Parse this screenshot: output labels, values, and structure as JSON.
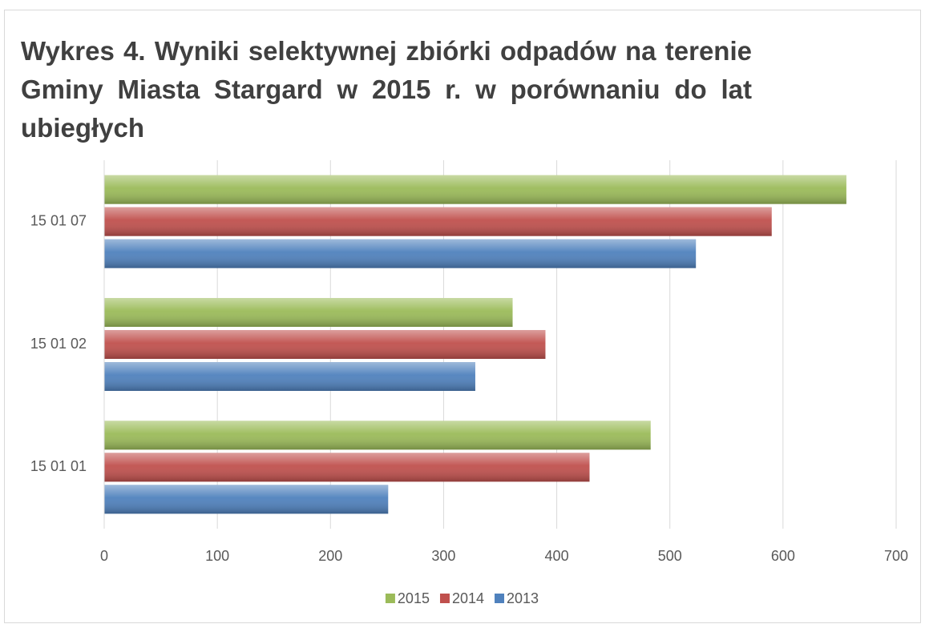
{
  "chart_data": {
    "type": "bar",
    "orientation": "horizontal",
    "title": "Wykres 4. Wyniki selektywnej zbiórki odpadów na terenie Gminy Miasta Stargard w 2015 r. w porównaniu do lat ubiegłych",
    "categories": [
      "15 01 01",
      "15 01 02",
      "15 01 07"
    ],
    "series": [
      {
        "name": "2015",
        "color": "#9bbb59",
        "values": [
          483,
          361,
          656
        ]
      },
      {
        "name": "2014",
        "color": "#c0504d",
        "values": [
          429,
          390,
          590
        ]
      },
      {
        "name": "2013",
        "color": "#4f81bd",
        "values": [
          251,
          328,
          523
        ]
      }
    ],
    "xlim": [
      0,
      700
    ],
    "xticks": [
      0,
      100,
      200,
      300,
      400,
      500,
      600,
      700
    ],
    "grid": true,
    "legend": "bottom"
  }
}
